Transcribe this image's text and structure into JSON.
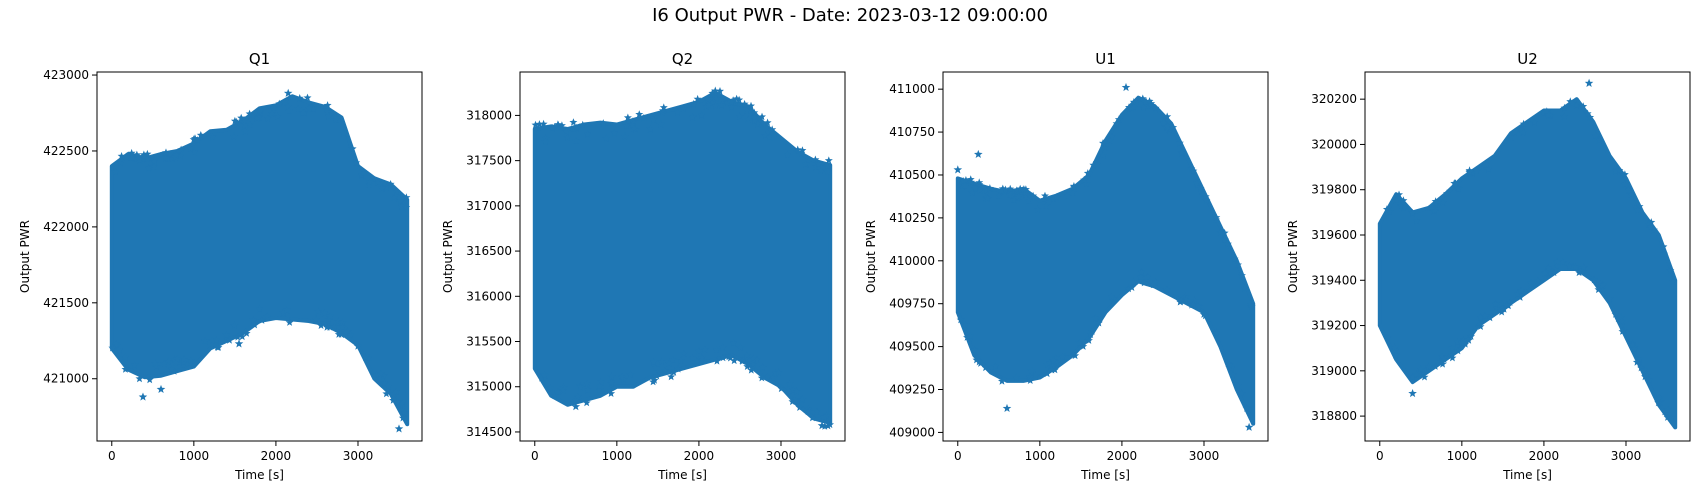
{
  "figure": {
    "title": "I6 Output PWR - Date: 2023-03-12 09:00:00"
  },
  "colors": {
    "series": "#1f77b4"
  },
  "chart_data": [
    {
      "type": "scatter",
      "title": "Q1",
      "xlabel": "Time [s]",
      "ylabel": "Output PWR",
      "marker": "star",
      "grid": false,
      "xlim": [
        -180,
        3780
      ],
      "ylim": [
        420590,
        423020
      ],
      "xticks": [
        0,
        1000,
        2000,
        3000
      ],
      "yticks": [
        421000,
        421500,
        422000,
        422500,
        423000
      ],
      "envelope_x": [
        0,
        200,
        400,
        600,
        800,
        1000,
        1200,
        1400,
        1600,
        1800,
        2000,
        2200,
        2400,
        2600,
        2800,
        3000,
        3200,
        3400,
        3600
      ],
      "envelope_upper": [
        422400,
        422480,
        422450,
        422480,
        422500,
        422550,
        422630,
        422640,
        422700,
        422780,
        422800,
        422860,
        422820,
        422790,
        422720,
        422400,
        422320,
        422280,
        422180
      ],
      "envelope_lower": [
        421200,
        421060,
        421010,
        421020,
        421050,
        421080,
        421200,
        421250,
        421300,
        421380,
        421400,
        421390,
        421380,
        421360,
        421300,
        421220,
        421000,
        420900,
        420700
      ],
      "outliers": [
        [
          380,
          420880
        ],
        [
          1550,
          421230
        ],
        [
          2150,
          422880
        ],
        [
          3500,
          420670
        ],
        [
          600,
          420930
        ]
      ]
    },
    {
      "type": "scatter",
      "title": "Q2",
      "xlabel": "Time [s]",
      "ylabel": "Output PWR",
      "marker": "star",
      "grid": false,
      "xlim": [
        -180,
        3780
      ],
      "ylim": [
        314400,
        318480
      ],
      "xticks": [
        0,
        1000,
        2000,
        3000
      ],
      "yticks": [
        314500,
        315000,
        315500,
        316000,
        316500,
        317000,
        317500,
        318000
      ],
      "envelope_x": [
        0,
        200,
        400,
        600,
        800,
        1000,
        1200,
        1400,
        1600,
        1800,
        2000,
        2200,
        2400,
        2600,
        2800,
        3000,
        3200,
        3400,
        3600
      ],
      "envelope_upper": [
        317850,
        317880,
        317850,
        317900,
        317920,
        317900,
        317950,
        318000,
        318050,
        318100,
        318150,
        318250,
        318150,
        318100,
        317900,
        317750,
        317600,
        317500,
        317450
      ],
      "envelope_lower": [
        315200,
        314900,
        314800,
        314850,
        314900,
        315000,
        315000,
        315100,
        315150,
        315200,
        315250,
        315300,
        315350,
        315250,
        315100,
        315000,
        314800,
        314650,
        314600
      ],
      "outliers": [
        [
          500,
          314780
        ],
        [
          2200,
          318270
        ],
        [
          3500,
          314570
        ]
      ]
    },
    {
      "type": "scatter",
      "title": "U1",
      "xlabel": "Time [s]",
      "ylabel": "Output PWR",
      "marker": "star",
      "grid": false,
      "xlim": [
        -180,
        3780
      ],
      "ylim": [
        408950,
        411100
      ],
      "xticks": [
        0,
        1000,
        2000,
        3000
      ],
      "yticks": [
        409000,
        409250,
        409500,
        409750,
        410000,
        410250,
        410500,
        410750,
        411000
      ],
      "envelope_x": [
        0,
        200,
        400,
        600,
        800,
        1000,
        1200,
        1400,
        1600,
        1800,
        2000,
        2200,
        2400,
        2600,
        2800,
        3000,
        3200,
        3400,
        3600
      ],
      "envelope_upper": [
        410480,
        410450,
        410420,
        410400,
        410420,
        410350,
        410380,
        410420,
        410500,
        410700,
        410850,
        410950,
        410900,
        410800,
        410600,
        410400,
        410200,
        410000,
        409750
      ],
      "envelope_lower": [
        409700,
        409450,
        409350,
        409300,
        409300,
        409320,
        409380,
        409450,
        409550,
        409700,
        409800,
        409880,
        409850,
        409800,
        409750,
        409700,
        409500,
        409250,
        409050
      ],
      "outliers": [
        [
          0,
          410530
        ],
        [
          250,
          410620
        ],
        [
          600,
          409140
        ],
        [
          2050,
          411010
        ],
        [
          3550,
          409030
        ]
      ]
    },
    {
      "type": "scatter",
      "title": "U2",
      "xlabel": "Time [s]",
      "ylabel": "Output PWR",
      "marker": "star",
      "grid": false,
      "xlim": [
        -180,
        3780
      ],
      "ylim": [
        318690,
        320320
      ],
      "xticks": [
        0,
        1000,
        2000,
        3000
      ],
      "yticks": [
        318800,
        319000,
        319200,
        319400,
        319600,
        319800,
        320000,
        320200
      ],
      "envelope_x": [
        0,
        200,
        400,
        600,
        800,
        1000,
        1200,
        1400,
        1600,
        1800,
        2000,
        2200,
        2400,
        2600,
        2800,
        3000,
        3200,
        3400,
        3600
      ],
      "envelope_upper": [
        319650,
        319780,
        319700,
        319720,
        319780,
        319850,
        319900,
        319950,
        320050,
        320100,
        320150,
        320150,
        320200,
        320100,
        319950,
        319850,
        319700,
        319600,
        319400
      ],
      "envelope_lower": [
        319200,
        319050,
        318950,
        319000,
        319050,
        319100,
        319200,
        319250,
        319300,
        319350,
        319400,
        319450,
        319450,
        319400,
        319300,
        319150,
        319000,
        318850,
        318750
      ],
      "outliers": [
        [
          400,
          318900
        ],
        [
          2550,
          320270
        ],
        [
          3550,
          318790
        ]
      ]
    }
  ]
}
